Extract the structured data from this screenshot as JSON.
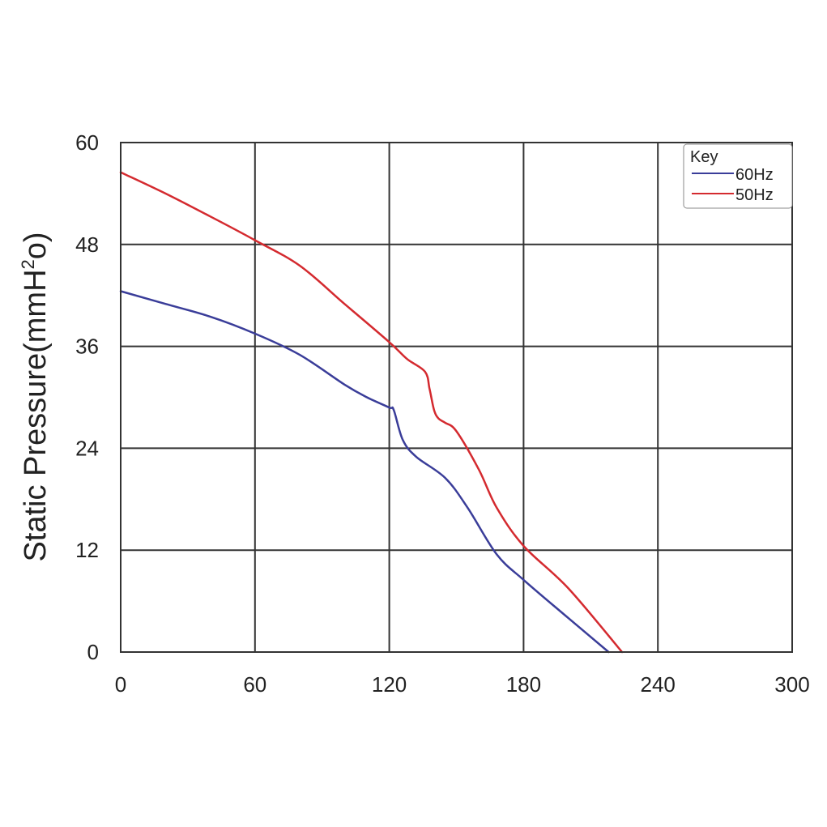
{
  "chart_data": {
    "type": "line",
    "title": "",
    "xlabel": "",
    "ylabel": "Static Pressure(mmH",
    "ylabel_sup": "2",
    "ylabel_end": "o)",
    "xlim": [
      0,
      300
    ],
    "ylim": [
      0,
      60
    ],
    "x_ticks": [
      0,
      60,
      120,
      180,
      240,
      300
    ],
    "y_ticks": [
      0,
      12,
      24,
      36,
      48,
      60
    ],
    "x_tick_labels": [
      "0",
      "60",
      "120",
      "180",
      "240",
      "300"
    ],
    "y_tick_labels": [
      "0",
      "12",
      "24",
      "36",
      "48",
      "60"
    ],
    "grid": true,
    "legend": {
      "title": "Key",
      "placement": "top-right"
    },
    "series": [
      {
        "name": "60Hz",
        "color": "#3a3d99",
        "x": [
          0,
          20,
          40,
          60,
          80,
          100,
          110,
          120,
          122,
          126,
          132,
          145,
          155,
          168,
          180,
          200,
          218
        ],
        "y": [
          42.5,
          41.0,
          39.5,
          37.5,
          35.0,
          31.5,
          30.0,
          28.8,
          28.5,
          25.0,
          23.0,
          20.5,
          17.0,
          11.5,
          8.5,
          4.0,
          0
        ]
      },
      {
        "name": "50Hz",
        "color": "#d42a2f",
        "x": [
          0,
          20,
          40,
          60,
          80,
          100,
          120,
          128,
          136,
          138,
          140,
          142,
          145,
          150,
          160,
          168,
          180,
          200,
          224
        ],
        "y": [
          56.5,
          54.0,
          51.3,
          48.5,
          45.5,
          41.0,
          36.5,
          34.5,
          33.0,
          31.0,
          28.5,
          27.5,
          27.0,
          26.0,
          21.5,
          17.0,
          12.5,
          7.5,
          0
        ]
      }
    ]
  }
}
